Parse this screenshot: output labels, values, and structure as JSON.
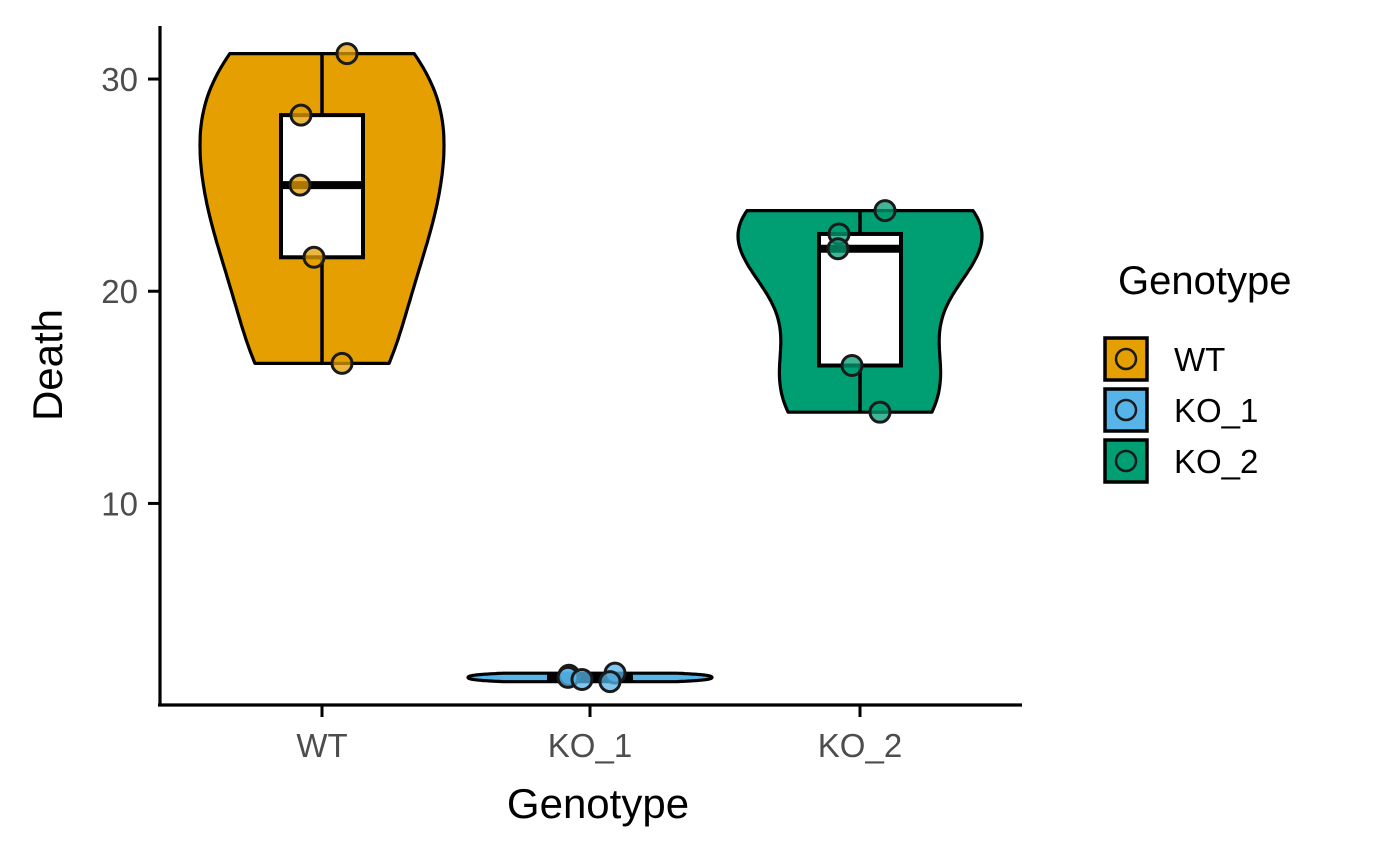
{
  "chart_data": {
    "type": "violin",
    "xlabel": "Genotype",
    "ylabel": "Death",
    "ylim": [
      0.5,
      32.5
    ],
    "y_ticks": [
      10,
      20,
      30
    ],
    "grid": false,
    "legend": {
      "title": "Genotype",
      "position": "right"
    },
    "categories": [
      "WT",
      "KO_1",
      "KO_2"
    ],
    "series": [
      {
        "name": "WT",
        "color": "#E69F00",
        "points": [
          31.2,
          28.3,
          25.0,
          21.6,
          16.6
        ],
        "box": {
          "q1": 21.6,
          "median": 25.0,
          "q3": 28.3,
          "min": 16.6,
          "max": 31.2
        },
        "violin_range": [
          16.6,
          31.2
        ]
      },
      {
        "name": "KO_1",
        "color": "#56B4E9",
        "points": [
          2.0,
          1.9,
          1.8,
          1.7,
          1.6
        ],
        "box": {
          "q1": 1.7,
          "median": 1.8,
          "q3": 1.9,
          "min": 1.6,
          "max": 2.0
        },
        "violin_range": [
          1.6,
          2.0
        ]
      },
      {
        "name": "KO_2",
        "color": "#009E73",
        "points": [
          23.8,
          22.7,
          22.0,
          16.5,
          14.3
        ],
        "box": {
          "q1": 16.5,
          "median": 22.0,
          "q3": 22.7,
          "min": 14.3,
          "max": 23.8
        },
        "violin_range": [
          14.3,
          23.8
        ]
      }
    ]
  }
}
